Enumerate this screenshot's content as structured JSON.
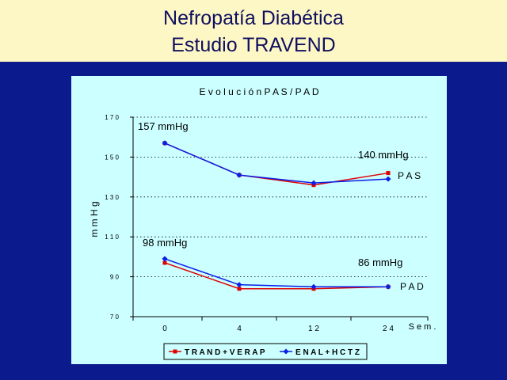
{
  "header": {
    "title_line1": "Nefropatía Diabética",
    "title_line2": "Estudio TRAVEND"
  },
  "colors": {
    "background": "#0b1a8c",
    "header_bg": "#fdf7c6",
    "title_text": "#10105e",
    "plot_bg": "#ccffff",
    "series_trand": "#e00000",
    "series_enal": "#0a1ee8"
  },
  "chart_data": {
    "type": "line",
    "title": "E v o l u c i ó n  P A S / P A D",
    "ylabel": "m m H g",
    "xlabel": "S e m .",
    "categories": [
      "0",
      "4",
      "1 2",
      "2 4"
    ],
    "x_values": [
      0,
      4,
      12,
      24
    ],
    "y_ticks": [
      "1 7 0",
      "1 5 0",
      "1 3 0",
      "1 1 0",
      "9 0",
      "7 0"
    ],
    "ylim": [
      70,
      170
    ],
    "grid": true,
    "legend_position": "bottom",
    "series": [
      {
        "name": "T R A N D + V E R A P",
        "group": "PAS",
        "color": "#e00000",
        "marker": "square",
        "values": [
          157,
          141,
          136,
          142
        ]
      },
      {
        "name": "E N A L + H C T Z",
        "group": "PAS",
        "color": "#0a1ee8",
        "marker": "diamond",
        "values": [
          157,
          141,
          137,
          139
        ]
      },
      {
        "name": "T R A N D + V E R A P",
        "group": "PAD",
        "color": "#e00000",
        "marker": "square",
        "values": [
          97,
          84,
          84,
          85
        ]
      },
      {
        "name": "E N A L + H C T Z",
        "group": "PAD",
        "color": "#0a1ee8",
        "marker": "diamond",
        "values": [
          99,
          86,
          85,
          85
        ]
      }
    ],
    "legend": [
      {
        "label": "T R A N D + V E R A P",
        "color": "#e00000",
        "marker": "square"
      },
      {
        "label": "E N A L + H C T Z",
        "color": "#0a1ee8",
        "marker": "diamond"
      }
    ],
    "annotations": {
      "pas_start": "157 mmHg",
      "pas_end": "140 mmHg",
      "pas_label": "P A S",
      "pad_start": "98 mmHg",
      "pad_end": "86 mmHg",
      "pad_label": "P A D"
    }
  }
}
